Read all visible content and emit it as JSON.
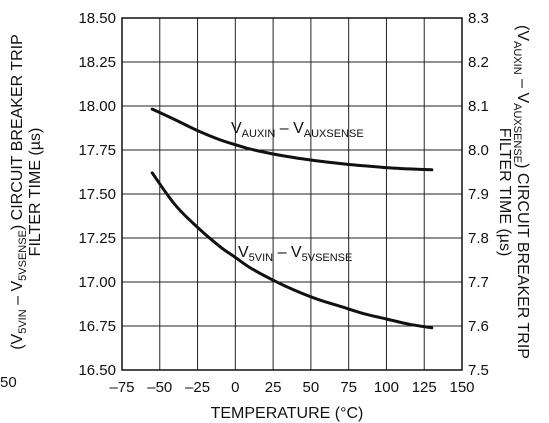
{
  "chart_data": {
    "type": "line",
    "title": "",
    "xlabel": "TEMPERATURE (°C)",
    "ylabel_left": {
      "a": "(V",
      "sub1": "5VIN",
      "b": " – V",
      "sub2": "5VSENSE",
      "c": ") CIRCUIT BREAKER TRIP",
      "line2": "FILTER TIME (µs)"
    },
    "ylabel_right": {
      "a": "(V",
      "sub1": "AUXIN",
      "b": " – V",
      "sub2": "AUXSENSE",
      "c": ") CIRCUIT BREAKER TRIP",
      "line2": "FILTER TIME (µs)"
    },
    "x_ticks": [
      "–75",
      "–50",
      "–25",
      "0",
      "25",
      "50",
      "75",
      "100",
      "125",
      "150"
    ],
    "x_tick_values": [
      -75,
      -50,
      -25,
      0,
      25,
      50,
      75,
      100,
      125,
      150
    ],
    "stray_left_label": "50",
    "xlim": [
      -75,
      150
    ],
    "ylim_left": [
      16.5,
      18.5
    ],
    "ylim_right": [
      7.5,
      8.3
    ],
    "y_ticks_left": [
      "16.50",
      "16.75",
      "17.00",
      "17.25",
      "17.50",
      "17.75",
      "18.00",
      "18.25",
      "18.50"
    ],
    "y_tick_values_left": [
      16.5,
      16.75,
      17.0,
      17.25,
      17.5,
      17.75,
      18.0,
      18.25,
      18.5
    ],
    "y_ticks_right": [
      "7.5",
      "7.6",
      "7.7",
      "7.8",
      "7.9",
      "8.0",
      "8.1",
      "8.2",
      "8.3"
    ],
    "y_tick_values_right": [
      7.5,
      7.6,
      7.7,
      7.8,
      7.9,
      8.0,
      8.1,
      8.2,
      8.3
    ],
    "grid": true,
    "series": [
      {
        "name": "V5VIN – V5VSENSE",
        "label": {
          "a": "V",
          "sub1": "5VIN",
          "b": " – V",
          "sub2": "5VSENSE"
        },
        "axis": "left",
        "x": [
          -55,
          -40,
          -25,
          -10,
          0,
          10,
          25,
          40,
          55,
          70,
          85,
          100,
          115,
          130
        ],
        "y": [
          17.62,
          17.44,
          17.31,
          17.2,
          17.14,
          17.08,
          17.01,
          16.95,
          16.9,
          16.86,
          16.82,
          16.79,
          16.76,
          16.74
        ]
      },
      {
        "name": "VAUXIN – VAUXSENSE",
        "label": {
          "a": "V",
          "sub1": "AUXIN",
          "b": " – V",
          "sub2": "AUXSENSE"
        },
        "axis": "right",
        "x": [
          -55,
          -40,
          -25,
          -10,
          0,
          10,
          25,
          40,
          55,
          70,
          85,
          100,
          115,
          130
        ],
        "y": [
          8.093,
          8.069,
          8.044,
          8.023,
          8.012,
          8.002,
          7.991,
          7.982,
          7.975,
          7.969,
          7.964,
          7.96,
          7.957,
          7.955
        ]
      }
    ]
  }
}
